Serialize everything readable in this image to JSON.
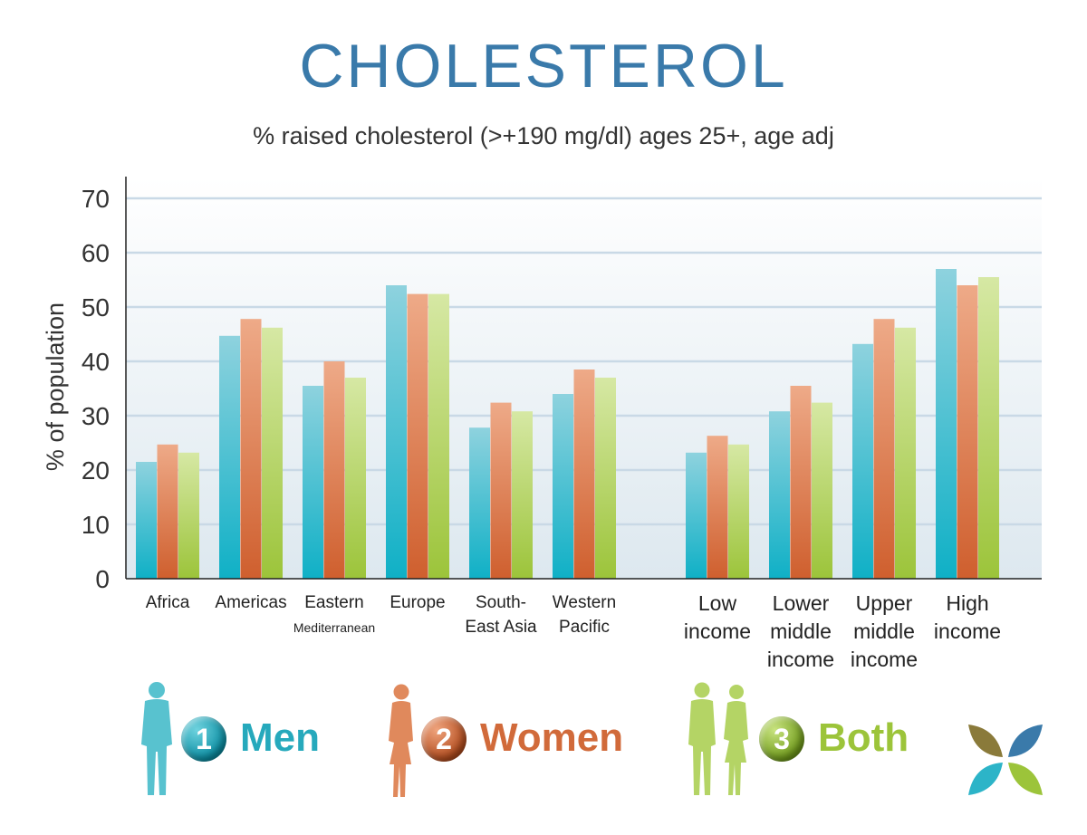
{
  "title": "CHOLESTEROL",
  "subtitle": "% raised cholesterol (>+190 mg/dl) ages 25+, age adj",
  "colors": {
    "men": "#2cb4c8",
    "women": "#d9754a",
    "both": "#a9cc4e",
    "title": "#3a7aaa"
  },
  "chart_data": {
    "type": "bar",
    "ylabel": "% of population",
    "ylim": [
      0,
      70
    ],
    "yticks": [
      0,
      10,
      20,
      30,
      40,
      50,
      60,
      70
    ],
    "grid": true,
    "categories": [
      {
        "lines": [
          "Africa"
        ],
        "group": 0
      },
      {
        "lines": [
          "Americas"
        ],
        "group": 0
      },
      {
        "lines": [
          "Eastern",
          "Mediterranean"
        ],
        "group": 0
      },
      {
        "lines": [
          "Europe"
        ],
        "group": 0
      },
      {
        "lines": [
          "South-",
          "East Asia"
        ],
        "group": 0
      },
      {
        "lines": [
          "Western",
          "Pacific"
        ],
        "group": 0
      },
      {
        "lines": [
          "Low",
          "income"
        ],
        "group": 1
      },
      {
        "lines": [
          "Lower",
          "middle",
          "income"
        ],
        "group": 1
      },
      {
        "lines": [
          "Upper",
          "middle",
          "income"
        ],
        "group": 1
      },
      {
        "lines": [
          "High",
          "income"
        ],
        "group": 1
      }
    ],
    "series": [
      {
        "name": "Men",
        "values": [
          21.5,
          44.7,
          35.5,
          54,
          27.8,
          34,
          23.2,
          30.8,
          43.2,
          57
        ]
      },
      {
        "name": "Women",
        "values": [
          24.7,
          47.8,
          40,
          52.4,
          32.4,
          38.5,
          26.3,
          35.5,
          47.8,
          54
        ]
      },
      {
        "name": "Both",
        "values": [
          23.2,
          46.2,
          37,
          52.4,
          30.8,
          37,
          24.7,
          32.4,
          46.2,
          55.5
        ]
      }
    ]
  },
  "legend": [
    {
      "number": "1",
      "label": "Men",
      "icon": "man-silhouette-icon"
    },
    {
      "number": "2",
      "label": "Women",
      "icon": "woman-silhouette-icon"
    },
    {
      "number": "3",
      "label": "Both",
      "icon": "couple-silhouette-icon"
    }
  ],
  "logo_icon": "four-leaf-logo-icon"
}
